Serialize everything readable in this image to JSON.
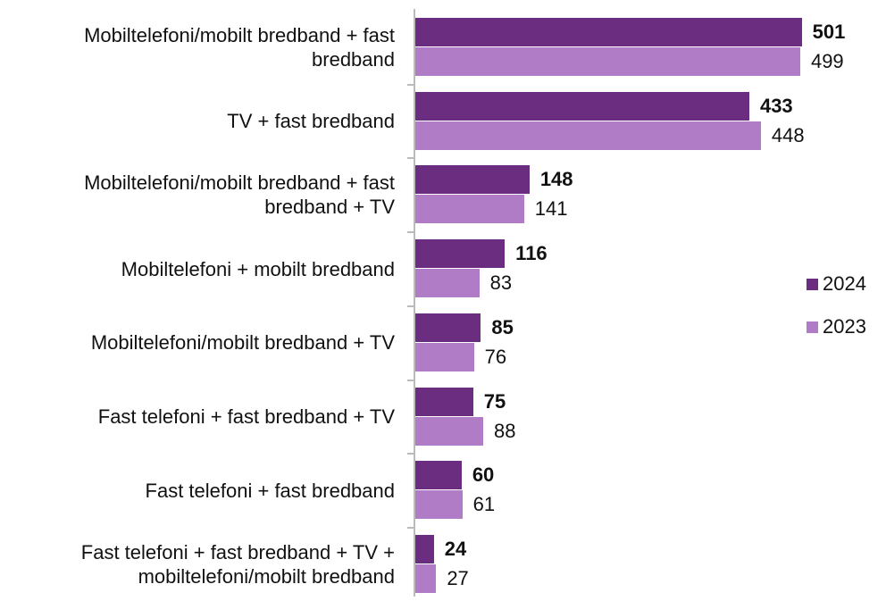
{
  "chart_data": {
    "type": "bar",
    "orientation": "horizontal",
    "categories": [
      "Mobiltelefoni/mobilt bredband + fast bredband",
      "TV + fast bredband",
      "Mobiltelefoni/mobilt bredband + fast bredband + TV",
      "Mobiltelefoni + mobilt bredband",
      "Mobiltelefoni/mobilt bredband + TV",
      "Fast telefoni + fast bredband + TV",
      "Fast telefoni + fast bredband",
      "Fast telefoni + fast bredband + TV + mobiltelefoni/mobilt bredband"
    ],
    "series": [
      {
        "name": "2024",
        "color": "#6b2d7f",
        "values": [
          501,
          433,
          148,
          116,
          85,
          75,
          60,
          24
        ]
      },
      {
        "name": "2023",
        "color": "#b07cc6",
        "values": [
          499,
          448,
          141,
          83,
          76,
          88,
          61,
          27
        ]
      }
    ],
    "xlim": [
      0,
      550
    ],
    "legend": "right"
  }
}
